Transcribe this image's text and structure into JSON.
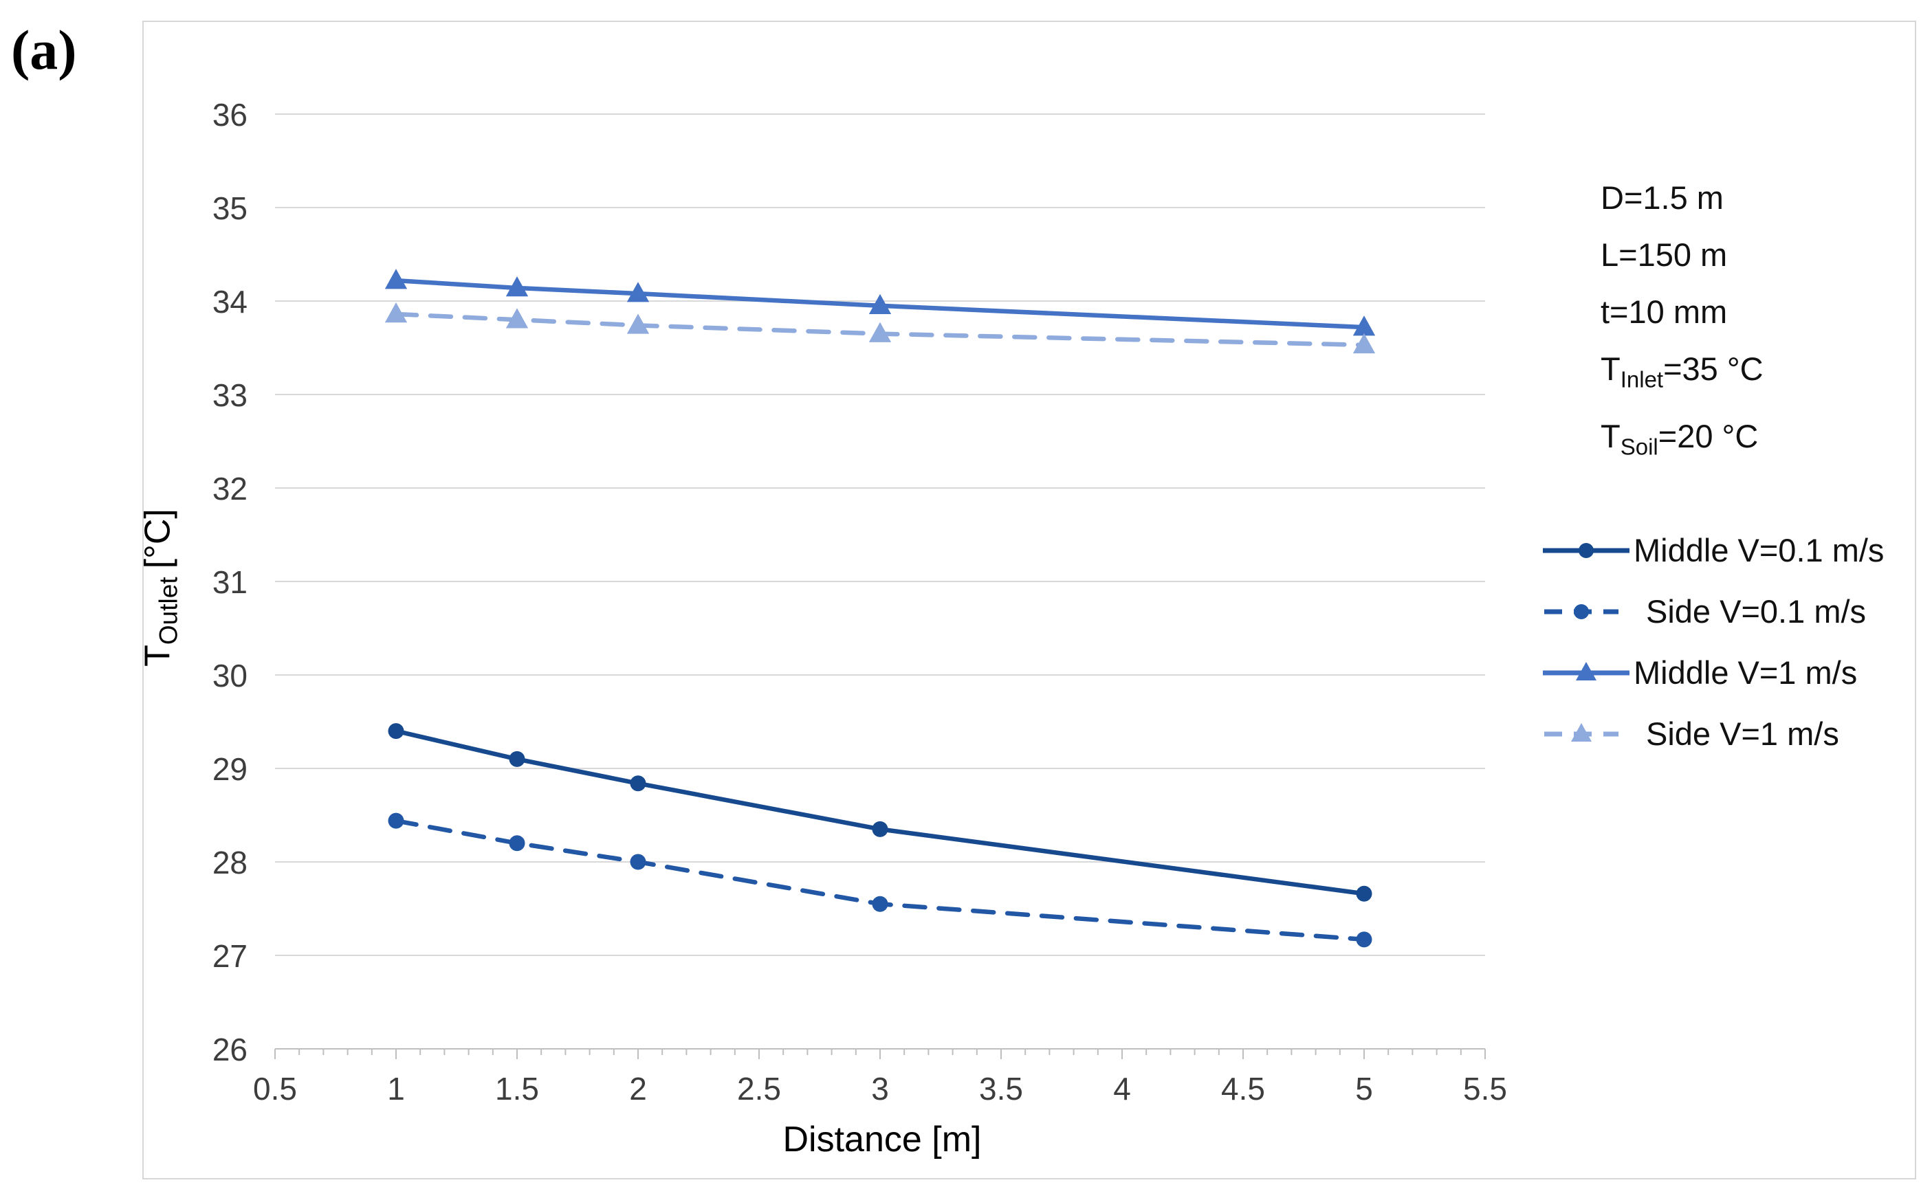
{
  "panel_label": "(a)",
  "annotation": {
    "lines": [
      {
        "pre": "D=1.5 m",
        "sub": "",
        "post": ""
      },
      {
        "pre": "L=150 m",
        "sub": "",
        "post": ""
      },
      {
        "pre": "t=10 mm",
        "sub": "",
        "post": ""
      },
      {
        "pre": "T",
        "sub": "Inlet",
        "post": "=35 °C"
      },
      {
        "pre": "T",
        "sub": "Soil",
        "post": "=20 °C"
      }
    ]
  },
  "chart_data": {
    "type": "line",
    "x": [
      1,
      1.5,
      2,
      3,
      5
    ],
    "series": [
      {
        "name": "Middle V=0.1 m/s",
        "values": [
          29.4,
          29.1,
          28.84,
          28.35,
          27.66
        ],
        "color": "#17498f",
        "style": "solid",
        "marker": "circle"
      },
      {
        "name": "Side V=0.1 m/s",
        "values": [
          28.44,
          28.2,
          28.0,
          27.55,
          27.17
        ],
        "color": "#2157a4",
        "style": "dashed",
        "marker": "circle"
      },
      {
        "name": "Middle V=1 m/s",
        "values": [
          34.22,
          34.14,
          34.08,
          33.95,
          33.72
        ],
        "color": "#4472c4",
        "style": "solid",
        "marker": "triangle"
      },
      {
        "name": "Side V=1 m/s",
        "values": [
          33.86,
          33.8,
          33.74,
          33.65,
          33.53
        ],
        "color": "#8faadc",
        "style": "dashed",
        "marker": "triangle"
      }
    ],
    "title": "",
    "xlabel": "Distance [m]",
    "ylabel": "T_Outlet [°C]",
    "ylabel_parts": {
      "main": "T",
      "sub": "Outlet",
      "unit": "[°C]"
    },
    "xlim": [
      0.5,
      5.5
    ],
    "ylim": [
      26,
      36
    ],
    "x_ticks": [
      "0.5",
      "1",
      "1.5",
      "2",
      "2.5",
      "3",
      "3.5",
      "4",
      "4.5",
      "5",
      "5.5"
    ],
    "x_minor_step": 0.1,
    "y_ticks": [
      "26",
      "27",
      "28",
      "29",
      "30",
      "31",
      "32",
      "33",
      "34",
      "35",
      "36"
    ],
    "grid": "horizontal",
    "legend_position": "right-middle"
  },
  "colors": {
    "grid": "#d9d9d9",
    "axis": "#bfbfbf",
    "tick": "#bfbfbf",
    "tick_label": "#3d3d3d",
    "text": "#111111",
    "border": "#d7d7d7",
    "background": "#ffffff"
  }
}
